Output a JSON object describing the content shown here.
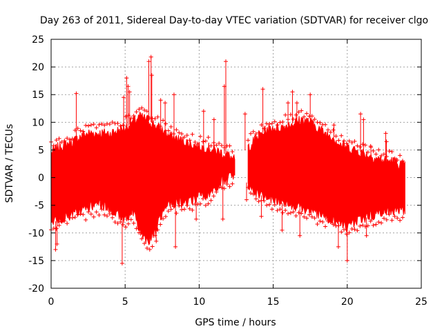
{
  "chart_data": {
    "type": "scatter",
    "title": "Day 263 of 2011, Sidereal Day-to-day VTEC variation (SDTVAR) for receiver clgo",
    "xlabel": "GPS time / hours",
    "ylabel": "SDTVAR / TECUs",
    "xlim": [
      0,
      25
    ],
    "ylim": [
      -20,
      25
    ],
    "xticks": [
      0,
      5,
      10,
      15,
      20,
      25
    ],
    "yticks": [
      -20,
      -15,
      -10,
      -5,
      0,
      5,
      10,
      15,
      20,
      25
    ],
    "x_tick_labels": [
      "0",
      "5",
      "10",
      "15",
      "20",
      "25"
    ],
    "y_tick_labels": [
      "-20",
      "-15",
      "-10",
      "-5",
      "0",
      "5",
      "10",
      "15",
      "20",
      "25"
    ],
    "grid": true,
    "marker": "+",
    "series": [
      {
        "name": "clgo",
        "color": "#ff0000",
        "note": "approximate lower/upper envelope of the dense point cloud (TECU) vs GPS hour",
        "hours": [
          0.0,
          0.5,
          1.0,
          1.5,
          2.0,
          2.5,
          3.0,
          3.5,
          4.0,
          4.5,
          5.0,
          5.5,
          6.0,
          6.5,
          7.0,
          7.5,
          8.0,
          8.5,
          9.0,
          9.5,
          10.0,
          10.5,
          11.0,
          11.5,
          12.0,
          12.4,
          13.3,
          13.5,
          14.0,
          14.5,
          15.0,
          15.5,
          16.0,
          16.5,
          17.0,
          17.5,
          18.0,
          18.5,
          19.0,
          19.5,
          20.0,
          20.5,
          21.0,
          21.5,
          22.0,
          22.5,
          23.0,
          23.5,
          23.9
        ],
        "lower": [
          -8.5,
          -7.5,
          -7.0,
          -6.5,
          -6.0,
          -5.5,
          -5.0,
          -5.0,
          -5.5,
          -6.5,
          -7.5,
          -6.0,
          -9.5,
          -11.5,
          -10.0,
          -6.5,
          -5.0,
          -4.5,
          -4.5,
          -4.0,
          -3.5,
          -3.0,
          -2.5,
          -0.5,
          0.0,
          0.0,
          -1.0,
          -2.0,
          -3.0,
          -3.5,
          -4.0,
          -4.5,
          -5.0,
          -5.5,
          -5.5,
          -6.0,
          -6.5,
          -7.0,
          -7.5,
          -8.0,
          -9.0,
          -8.0,
          -7.5,
          -7.0,
          -6.5,
          -6.0,
          -6.0,
          -6.0,
          -6.0
        ],
        "upper": [
          4.5,
          5.5,
          6.0,
          6.5,
          7.5,
          8.0,
          8.0,
          8.0,
          8.0,
          8.5,
          9.0,
          10.0,
          11.0,
          10.5,
          9.5,
          8.5,
          7.5,
          7.0,
          6.5,
          6.0,
          5.5,
          5.5,
          5.0,
          4.5,
          4.0,
          3.0,
          5.5,
          6.0,
          7.5,
          8.5,
          9.0,
          9.0,
          9.5,
          10.0,
          10.5,
          10.0,
          9.0,
          8.0,
          7.5,
          6.0,
          5.5,
          5.0,
          4.5,
          4.0,
          3.5,
          3.0,
          3.0,
          2.5,
          2.0
        ],
        "spikes": [
          {
            "x": 0.3,
            "y": -13.0
          },
          {
            "x": 0.4,
            "y": -12.0
          },
          {
            "x": 1.7,
            "y": 15.2
          },
          {
            "x": 4.8,
            "y": -15.5
          },
          {
            "x": 4.9,
            "y": 14.5
          },
          {
            "x": 5.1,
            "y": 18.0
          },
          {
            "x": 5.2,
            "y": 16.5
          },
          {
            "x": 5.3,
            "y": 15.5
          },
          {
            "x": 6.6,
            "y": 21.0
          },
          {
            "x": 6.75,
            "y": 21.8
          },
          {
            "x": 6.8,
            "y": 18.5
          },
          {
            "x": 7.1,
            "y": -11.5
          },
          {
            "x": 7.4,
            "y": 14.0
          },
          {
            "x": 7.7,
            "y": 13.5
          },
          {
            "x": 8.4,
            "y": -12.5
          },
          {
            "x": 8.3,
            "y": 15.0
          },
          {
            "x": 9.8,
            "y": -7.5
          },
          {
            "x": 10.3,
            "y": 12.0
          },
          {
            "x": 11.0,
            "y": 10.5
          },
          {
            "x": 11.8,
            "y": 21.0
          },
          {
            "x": 11.7,
            "y": 16.5
          },
          {
            "x": 11.6,
            "y": -7.5
          },
          {
            "x": 13.1,
            "y": 11.5
          },
          {
            "x": 13.2,
            "y": -4.0
          },
          {
            "x": 14.2,
            "y": -7.0
          },
          {
            "x": 14.3,
            "y": 16.0
          },
          {
            "x": 15.6,
            "y": -9.5
          },
          {
            "x": 16.0,
            "y": 13.5
          },
          {
            "x": 16.3,
            "y": 15.5
          },
          {
            "x": 16.6,
            "y": 13.5
          },
          {
            "x": 16.8,
            "y": -10.5
          },
          {
            "x": 17.5,
            "y": 15.0
          },
          {
            "x": 19.1,
            "y": 9.5
          },
          {
            "x": 19.4,
            "y": -12.5
          },
          {
            "x": 20.0,
            "y": -15.0
          },
          {
            "x": 20.9,
            "y": 11.5
          },
          {
            "x": 21.1,
            "y": 10.5
          },
          {
            "x": 21.3,
            "y": -10.5
          },
          {
            "x": 21.6,
            "y": 5.5
          },
          {
            "x": 22.6,
            "y": 8.0
          },
          {
            "x": 22.65,
            "y": 6.5
          }
        ]
      }
    ]
  }
}
